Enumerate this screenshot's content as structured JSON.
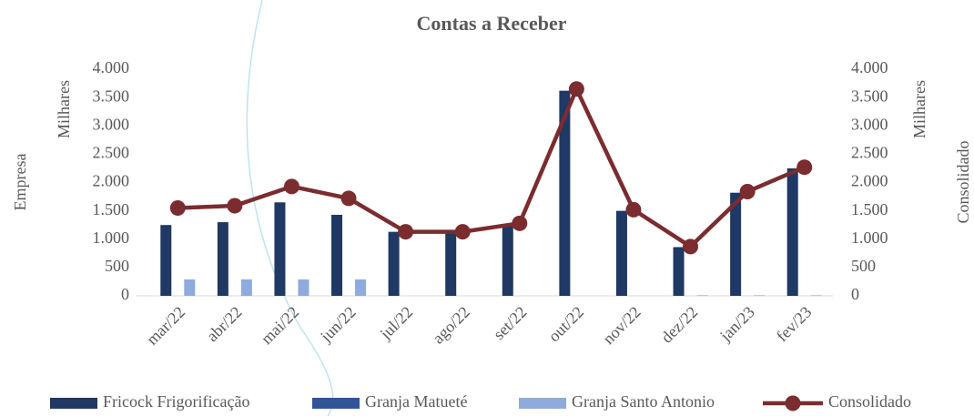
{
  "chart_data": {
    "type": "bar",
    "title": "Contas a Receber",
    "ylabel": "Empresa",
    "ylabel_units": "Milhares",
    "y2label": "Consolidado",
    "y2label_units": "Milhares",
    "categories": [
      "mar/22",
      "abr/22",
      "mai/22",
      "jun/22",
      "jul/22",
      "ago/22",
      "set/22",
      "out/22",
      "nov/22",
      "dez/22",
      "jan/23",
      "fev/23"
    ],
    "series": [
      {
        "name": "Fricock Frigorificação",
        "color": "#1f3864",
        "type": "bar",
        "values": [
          1250,
          1300,
          1650,
          1430,
          1130,
          1150,
          1250,
          3620,
          1500,
          860,
          1820,
          2250
        ]
      },
      {
        "name": "Granja Matueté",
        "color": "#2f5597",
        "type": "bar",
        "values": [
          0,
          0,
          0,
          0,
          0,
          0,
          0,
          0,
          0,
          0,
          0,
          0
        ]
      },
      {
        "name": "Granja Santo Antonio",
        "color": "#8faadc",
        "type": "bar",
        "values": [
          290,
          290,
          290,
          290,
          0,
          0,
          0,
          0,
          0,
          10,
          10,
          10
        ]
      },
      {
        "name": "Consolidado",
        "color": "#7b2c2f",
        "type": "line",
        "axis": "y2",
        "values": [
          1550,
          1590,
          1930,
          1720,
          1130,
          1130,
          1280,
          3650,
          1520,
          870,
          1840,
          2270
        ]
      }
    ],
    "ylim": [
      0,
      4000
    ],
    "yticks": [
      0,
      {
        "value": 500,
        "label": "500"
      },
      {
        "value": 1000,
        "label": "1.000"
      },
      {
        "value": 1500,
        "label": "1.500"
      },
      {
        "value": 2000,
        "label": "2.000"
      },
      {
        "value": 2500,
        "label": "2.500"
      },
      {
        "value": 3000,
        "label": "3.000"
      },
      {
        "value": 3500,
        "label": "3.500"
      },
      {
        "value": 4000,
        "label": "4.000"
      }
    ],
    "y2lim": [
      0,
      4000
    ],
    "y2ticks": [
      0,
      {
        "value": 500,
        "label": "500"
      },
      {
        "value": 1000,
        "label": "1.000"
      },
      {
        "value": 1500,
        "label": "1.500"
      },
      {
        "value": 2000,
        "label": "2.000"
      },
      {
        "value": 2500,
        "label": "2.500"
      },
      {
        "value": 3000,
        "label": "3.000"
      },
      {
        "value": 3500,
        "label": "3.500"
      },
      {
        "value": 4000,
        "label": "4.000"
      }
    ],
    "legend": "bottom"
  }
}
